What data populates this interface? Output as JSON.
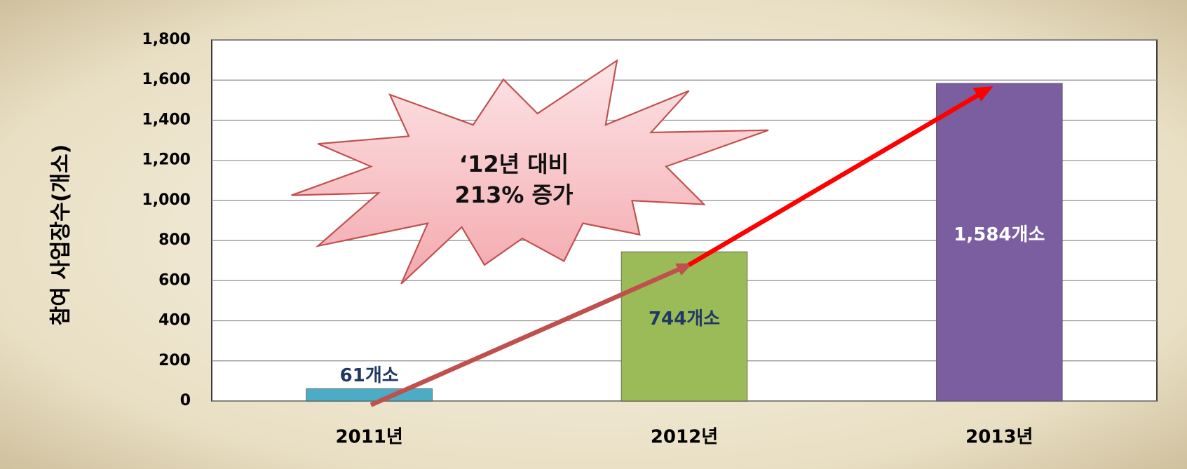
{
  "chart_data": {
    "type": "bar",
    "ylabel": "참여 사업장수(개소)",
    "categories": [
      "2011년",
      "2012년",
      "2013년"
    ],
    "values": [
      61,
      744,
      1584
    ],
    "value_labels": [
      "61개소",
      "744개소",
      "1,584개소"
    ],
    "colors": [
      "#4bacc6",
      "#9bbb59",
      "#7a5ea0"
    ],
    "value_label_colors": [
      "#1f3864",
      "#1f3864",
      "#ffffff"
    ],
    "annotation": [
      "‘12년 대비",
      "213% 증가"
    ],
    "ylim": [
      0,
      1800
    ],
    "yticks": [
      0,
      200,
      400,
      600,
      800,
      {
        "value": 1000,
        "label": "1,000"
      },
      {
        "value": 1200,
        "label": "1,200"
      },
      {
        "value": 1400,
        "label": "1,400"
      },
      {
        "value": 1600,
        "label": "1,600"
      },
      {
        "value": 1800,
        "label": "1,800"
      }
    ],
    "grid": true
  }
}
